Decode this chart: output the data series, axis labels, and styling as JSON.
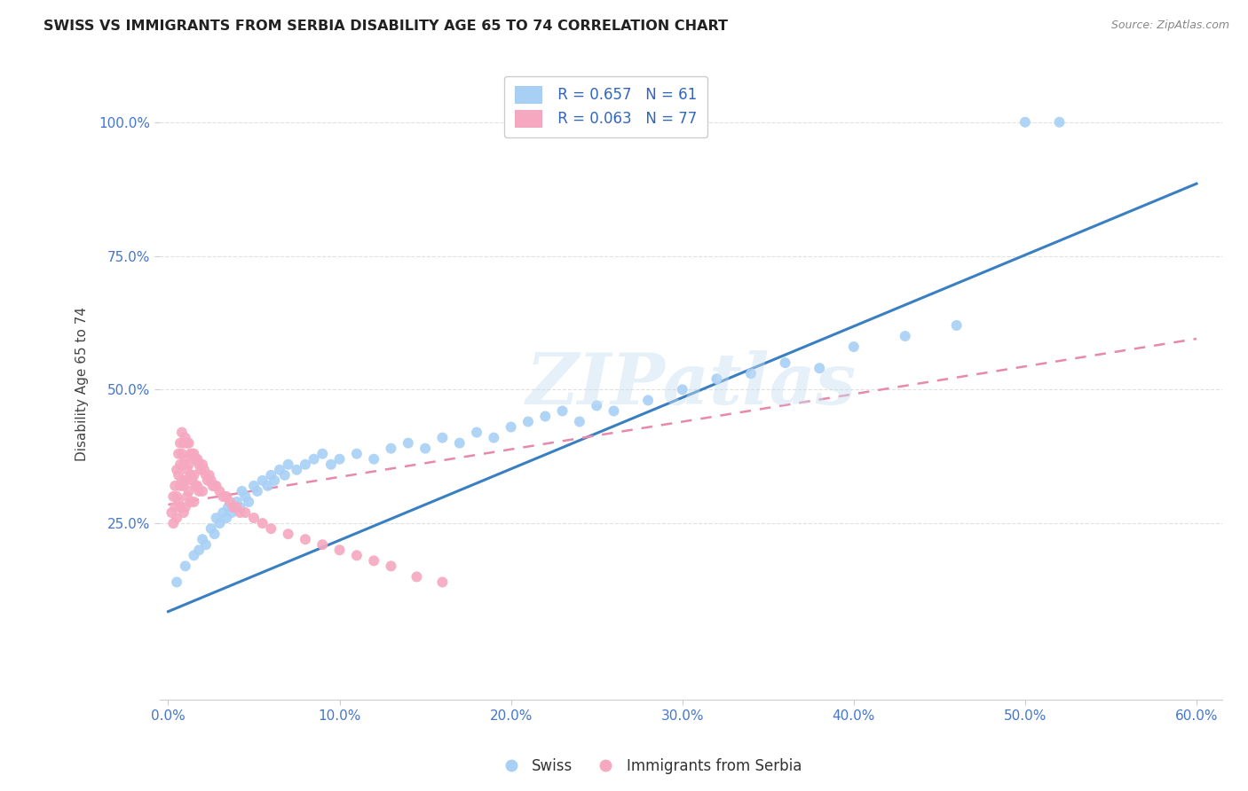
{
  "title": "SWISS VS IMMIGRANTS FROM SERBIA DISABILITY AGE 65 TO 74 CORRELATION CHART",
  "source": "Source: ZipAtlas.com",
  "ylabel": "Disability Age 65 to 74",
  "xlim": [
    -0.005,
    0.615
  ],
  "ylim": [
    -0.08,
    1.1
  ],
  "xtick_labels": [
    "0.0%",
    "10.0%",
    "20.0%",
    "30.0%",
    "40.0%",
    "50.0%",
    "60.0%"
  ],
  "xtick_values": [
    0.0,
    0.1,
    0.2,
    0.3,
    0.4,
    0.5,
    0.6
  ],
  "ytick_labels": [
    "25.0%",
    "50.0%",
    "75.0%",
    "100.0%"
  ],
  "ytick_values": [
    0.25,
    0.5,
    0.75,
    1.0
  ],
  "swiss_color": "#a8d0f5",
  "serbia_color": "#f5a8c0",
  "swiss_line_color": "#3a7fc1",
  "serbia_line_color": "#e888aa",
  "legend_swiss_R": "R = 0.657",
  "legend_swiss_N": "N = 61",
  "legend_serbia_R": "R = 0.063",
  "legend_serbia_N": "N = 77",
  "legend_label_swiss": "Swiss",
  "legend_label_serbia": "Immigrants from Serbia",
  "watermark": "ZIPatlas",
  "swiss_x": [
    0.005,
    0.01,
    0.015,
    0.018,
    0.02,
    0.022,
    0.025,
    0.027,
    0.028,
    0.03,
    0.032,
    0.034,
    0.035,
    0.037,
    0.04,
    0.042,
    0.043,
    0.045,
    0.047,
    0.05,
    0.052,
    0.055,
    0.058,
    0.06,
    0.062,
    0.065,
    0.068,
    0.07,
    0.075,
    0.08,
    0.085,
    0.09,
    0.095,
    0.1,
    0.11,
    0.12,
    0.13,
    0.14,
    0.15,
    0.16,
    0.17,
    0.18,
    0.19,
    0.2,
    0.21,
    0.22,
    0.23,
    0.24,
    0.25,
    0.26,
    0.28,
    0.3,
    0.32,
    0.34,
    0.36,
    0.38,
    0.4,
    0.43,
    0.46,
    0.5,
    0.52
  ],
  "swiss_y": [
    0.14,
    0.17,
    0.19,
    0.2,
    0.22,
    0.21,
    0.24,
    0.23,
    0.26,
    0.25,
    0.27,
    0.26,
    0.28,
    0.27,
    0.29,
    0.28,
    0.31,
    0.3,
    0.29,
    0.32,
    0.31,
    0.33,
    0.32,
    0.34,
    0.33,
    0.35,
    0.34,
    0.36,
    0.35,
    0.36,
    0.37,
    0.38,
    0.36,
    0.37,
    0.38,
    0.37,
    0.39,
    0.4,
    0.39,
    0.41,
    0.4,
    0.42,
    0.41,
    0.43,
    0.44,
    0.45,
    0.46,
    0.44,
    0.47,
    0.46,
    0.48,
    0.5,
    0.52,
    0.53,
    0.55,
    0.54,
    0.58,
    0.6,
    0.62,
    1.0,
    1.0
  ],
  "serbia_x": [
    0.002,
    0.003,
    0.003,
    0.004,
    0.004,
    0.005,
    0.005,
    0.005,
    0.006,
    0.006,
    0.006,
    0.007,
    0.007,
    0.007,
    0.007,
    0.008,
    0.008,
    0.008,
    0.009,
    0.009,
    0.009,
    0.009,
    0.01,
    0.01,
    0.01,
    0.01,
    0.011,
    0.011,
    0.011,
    0.012,
    0.012,
    0.012,
    0.013,
    0.013,
    0.013,
    0.014,
    0.014,
    0.015,
    0.015,
    0.015,
    0.016,
    0.016,
    0.017,
    0.017,
    0.018,
    0.018,
    0.019,
    0.02,
    0.02,
    0.021,
    0.022,
    0.023,
    0.024,
    0.025,
    0.026,
    0.027,
    0.028,
    0.03,
    0.032,
    0.034,
    0.036,
    0.038,
    0.04,
    0.042,
    0.045,
    0.05,
    0.055,
    0.06,
    0.07,
    0.08,
    0.09,
    0.1,
    0.11,
    0.12,
    0.13,
    0.145,
    0.16
  ],
  "serbia_y": [
    0.27,
    0.3,
    0.25,
    0.32,
    0.28,
    0.35,
    0.3,
    0.26,
    0.38,
    0.34,
    0.29,
    0.4,
    0.36,
    0.32,
    0.28,
    0.42,
    0.38,
    0.33,
    0.4,
    0.36,
    0.32,
    0.27,
    0.41,
    0.37,
    0.33,
    0.28,
    0.4,
    0.35,
    0.3,
    0.4,
    0.36,
    0.31,
    0.38,
    0.34,
    0.29,
    0.38,
    0.33,
    0.38,
    0.34,
    0.29,
    0.37,
    0.32,
    0.37,
    0.32,
    0.36,
    0.31,
    0.35,
    0.36,
    0.31,
    0.35,
    0.34,
    0.33,
    0.34,
    0.33,
    0.32,
    0.32,
    0.32,
    0.31,
    0.3,
    0.3,
    0.29,
    0.28,
    0.28,
    0.27,
    0.27,
    0.26,
    0.25,
    0.24,
    0.23,
    0.22,
    0.21,
    0.2,
    0.19,
    0.18,
    0.17,
    0.15,
    0.14
  ],
  "swiss_line": [
    0.0,
    0.6,
    0.085,
    0.885
  ],
  "serbia_line": [
    0.0,
    0.6,
    0.285,
    0.595
  ],
  "background_color": "#ffffff",
  "grid_color": "#e0e0e0"
}
